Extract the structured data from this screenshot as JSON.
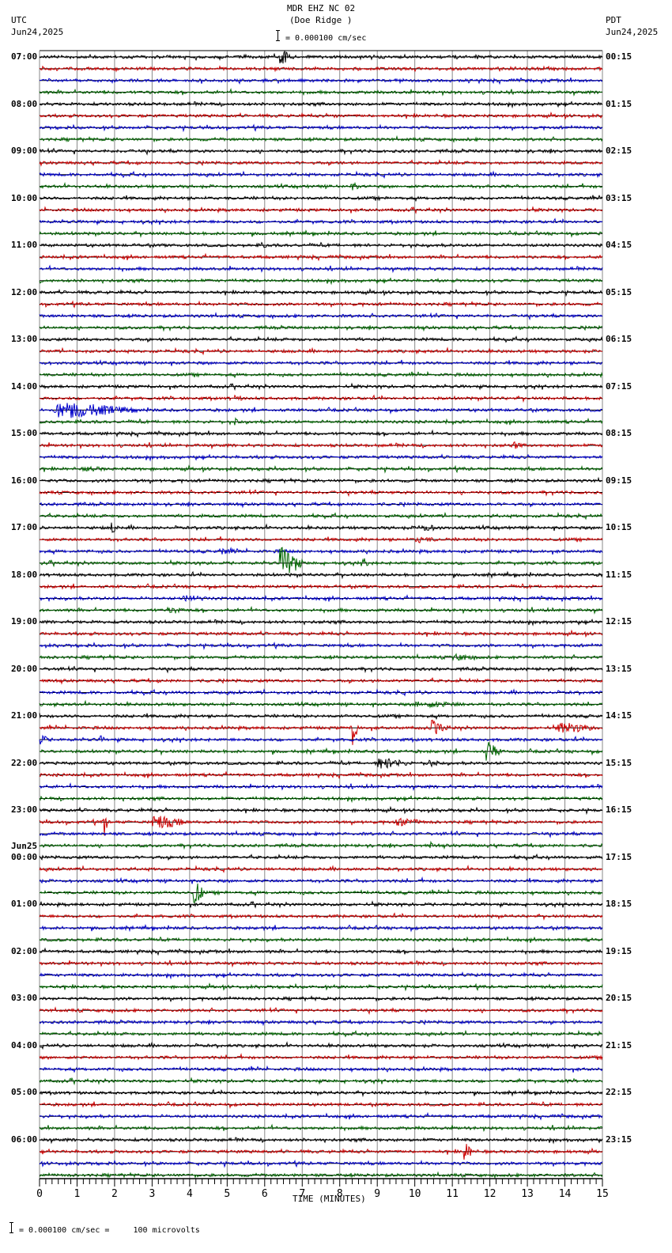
{
  "header": {
    "station": "MDR EHZ NC 02",
    "location": "(Doe Ridge )",
    "scale": "= 0.000100 cm/sec",
    "left_tz": "UTC",
    "left_date": "Jun24,2025",
    "right_tz": "PDT",
    "right_date": "Jun24,2025"
  },
  "footer": {
    "scale_note": "= 0.000100 cm/sec =     100 microvolts",
    "xlabel": "TIME (MINUTES)"
  },
  "colors": {
    "trace_cycle": [
      "#000000",
      "#cc0000",
      "#0000cc",
      "#006600"
    ],
    "grid": "#888888"
  },
  "chart_data": {
    "type": "line",
    "title": "MDR EHZ NC 02 (Doe Ridge )",
    "subtitle": "= 0.000100 cm/sec",
    "xlabel": "TIME (MINUTES)",
    "ylabel": "",
    "xlim": [
      0,
      15
    ],
    "x_ticks": [
      "0",
      "1",
      "2",
      "3",
      "4",
      "5",
      "6",
      "7",
      "8",
      "9",
      "10",
      "11",
      "12",
      "13",
      "14",
      "15"
    ],
    "grid": true,
    "traces_per_hour": 4,
    "trace_count": 96,
    "left_labels": [
      {
        "row": 0,
        "text": "07:00"
      },
      {
        "row": 4,
        "text": "08:00"
      },
      {
        "row": 8,
        "text": "09:00"
      },
      {
        "row": 12,
        "text": "10:00"
      },
      {
        "row": 16,
        "text": "11:00"
      },
      {
        "row": 20,
        "text": "12:00"
      },
      {
        "row": 24,
        "text": "13:00"
      },
      {
        "row": 28,
        "text": "14:00"
      },
      {
        "row": 32,
        "text": "15:00"
      },
      {
        "row": 36,
        "text": "16:00"
      },
      {
        "row": 40,
        "text": "17:00"
      },
      {
        "row": 44,
        "text": "18:00"
      },
      {
        "row": 48,
        "text": "19:00"
      },
      {
        "row": 52,
        "text": "20:00"
      },
      {
        "row": 56,
        "text": "21:00"
      },
      {
        "row": 60,
        "text": "22:00"
      },
      {
        "row": 64,
        "text": "23:00"
      },
      {
        "row": 68,
        "text": "00:00",
        "date": "Jun25"
      },
      {
        "row": 72,
        "text": "01:00"
      },
      {
        "row": 76,
        "text": "02:00"
      },
      {
        "row": 80,
        "text": "03:00"
      },
      {
        "row": 84,
        "text": "04:00"
      },
      {
        "row": 88,
        "text": "05:00"
      },
      {
        "row": 92,
        "text": "06:00"
      }
    ],
    "right_labels": [
      {
        "row": 0,
        "text": "00:15"
      },
      {
        "row": 4,
        "text": "01:15"
      },
      {
        "row": 8,
        "text": "02:15"
      },
      {
        "row": 12,
        "text": "03:15"
      },
      {
        "row": 16,
        "text": "04:15"
      },
      {
        "row": 20,
        "text": "05:15"
      },
      {
        "row": 24,
        "text": "06:15"
      },
      {
        "row": 28,
        "text": "07:15"
      },
      {
        "row": 32,
        "text": "08:15"
      },
      {
        "row": 36,
        "text": "09:15"
      },
      {
        "row": 40,
        "text": "10:15"
      },
      {
        "row": 44,
        "text": "11:15"
      },
      {
        "row": 48,
        "text": "12:15"
      },
      {
        "row": 52,
        "text": "13:15"
      },
      {
        "row": 56,
        "text": "14:15"
      },
      {
        "row": 60,
        "text": "15:15"
      },
      {
        "row": 64,
        "text": "16:15"
      },
      {
        "row": 68,
        "text": "17:15"
      },
      {
        "row": 72,
        "text": "18:15"
      },
      {
        "row": 76,
        "text": "19:15"
      },
      {
        "row": 80,
        "text": "20:15"
      },
      {
        "row": 84,
        "text": "21:15"
      },
      {
        "row": 88,
        "text": "22:15"
      },
      {
        "row": 92,
        "text": "23:15"
      }
    ],
    "events": [
      {
        "row": 0,
        "minute": 6.4,
        "dur": 0.4,
        "amp": 9
      },
      {
        "row": 5,
        "minute": 7.8,
        "dur": 0.2,
        "amp": 4
      },
      {
        "row": 9,
        "minute": 7.9,
        "dur": 0.1,
        "amp": 5
      },
      {
        "row": 11,
        "minute": 8.3,
        "dur": 0.3,
        "amp": 5
      },
      {
        "row": 16,
        "minute": 5.9,
        "dur": 0.2,
        "amp": 5
      },
      {
        "row": 29,
        "minute": 5.2,
        "dur": 0.3,
        "amp": 4
      },
      {
        "row": 30,
        "minute": 0.4,
        "dur": 2.3,
        "amp": 10
      },
      {
        "row": 31,
        "minute": 5.2,
        "dur": 0.2,
        "amp": 5
      },
      {
        "row": 33,
        "minute": 12.6,
        "dur": 0.3,
        "amp": 5
      },
      {
        "row": 35,
        "minute": 1.2,
        "dur": 1.0,
        "amp": 3
      },
      {
        "row": 40,
        "minute": 1.9,
        "dur": 0.2,
        "amp": 9
      },
      {
        "row": 40,
        "minute": 10.1,
        "dur": 1.0,
        "amp": 4
      },
      {
        "row": 41,
        "minute": 10.0,
        "dur": 0.8,
        "amp": 4
      },
      {
        "row": 42,
        "minute": 4.8,
        "dur": 0.8,
        "amp": 4
      },
      {
        "row": 43,
        "minute": 6.4,
        "dur": 0.6,
        "amp": 20
      },
      {
        "row": 43,
        "minute": 8.6,
        "dur": 0.2,
        "amp": 7
      },
      {
        "row": 46,
        "minute": 3.8,
        "dur": 1.0,
        "amp": 4
      },
      {
        "row": 47,
        "minute": 3.4,
        "dur": 0.8,
        "amp": 4
      },
      {
        "row": 51,
        "minute": 11.0,
        "dur": 1.0,
        "amp": 4
      },
      {
        "row": 55,
        "minute": 10.0,
        "dur": 2.0,
        "amp": 4
      },
      {
        "row": 57,
        "minute": 8.3,
        "dur": 0.2,
        "amp": 25
      },
      {
        "row": 57,
        "minute": 10.4,
        "dur": 0.5,
        "amp": 10
      },
      {
        "row": 57,
        "minute": 13.8,
        "dur": 1.2,
        "amp": 7
      },
      {
        "row": 58,
        "minute": 0.0,
        "dur": 0.3,
        "amp": 6
      },
      {
        "row": 58,
        "minute": 1.6,
        "dur": 0.2,
        "amp": 5
      },
      {
        "row": 59,
        "minute": 11.9,
        "dur": 0.4,
        "amp": 12
      },
      {
        "row": 60,
        "minute": 9.0,
        "dur": 1.0,
        "amp": 7
      },
      {
        "row": 60,
        "minute": 10.3,
        "dur": 0.5,
        "amp": 5
      },
      {
        "row": 65,
        "minute": 1.7,
        "dur": 0.1,
        "amp": 30
      },
      {
        "row": 65,
        "minute": 3.0,
        "dur": 1.0,
        "amp": 9
      },
      {
        "row": 65,
        "minute": 9.5,
        "dur": 1.0,
        "amp": 5
      },
      {
        "row": 67,
        "minute": 10.4,
        "dur": 0.1,
        "amp": 5
      },
      {
        "row": 71,
        "minute": 4.1,
        "dur": 0.3,
        "amp": 15
      },
      {
        "row": 78,
        "minute": 11.5,
        "dur": 0.3,
        "amp": 4
      },
      {
        "row": 93,
        "minute": 11.3,
        "dur": 0.3,
        "amp": 12
      }
    ]
  }
}
